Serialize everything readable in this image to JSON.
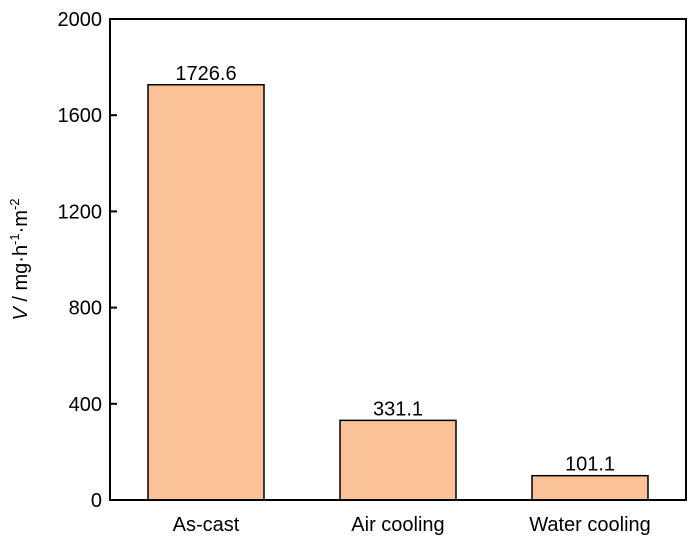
{
  "chart_data": {
    "type": "bar",
    "categories": [
      "As-cast",
      "Air cooling",
      "Water cooling"
    ],
    "values": [
      1726.6,
      331.1,
      101.1
    ],
    "data_labels": [
      "1726.6",
      "331.1",
      "101.1"
    ],
    "title": "",
    "xlabel": "",
    "ylabel": {
      "var": "V",
      "sep": " / mg·h",
      "exp1": "-1",
      "mid": "·m",
      "exp2": "-2"
    },
    "ylim": [
      0,
      2000
    ],
    "yticks": [
      0,
      400,
      800,
      1200,
      1600,
      2000
    ],
    "grid": false,
    "legend": "none",
    "colors": {
      "bar_fill": "#FBC395",
      "bar_stroke": "#000000",
      "axis": "#000000"
    }
  }
}
